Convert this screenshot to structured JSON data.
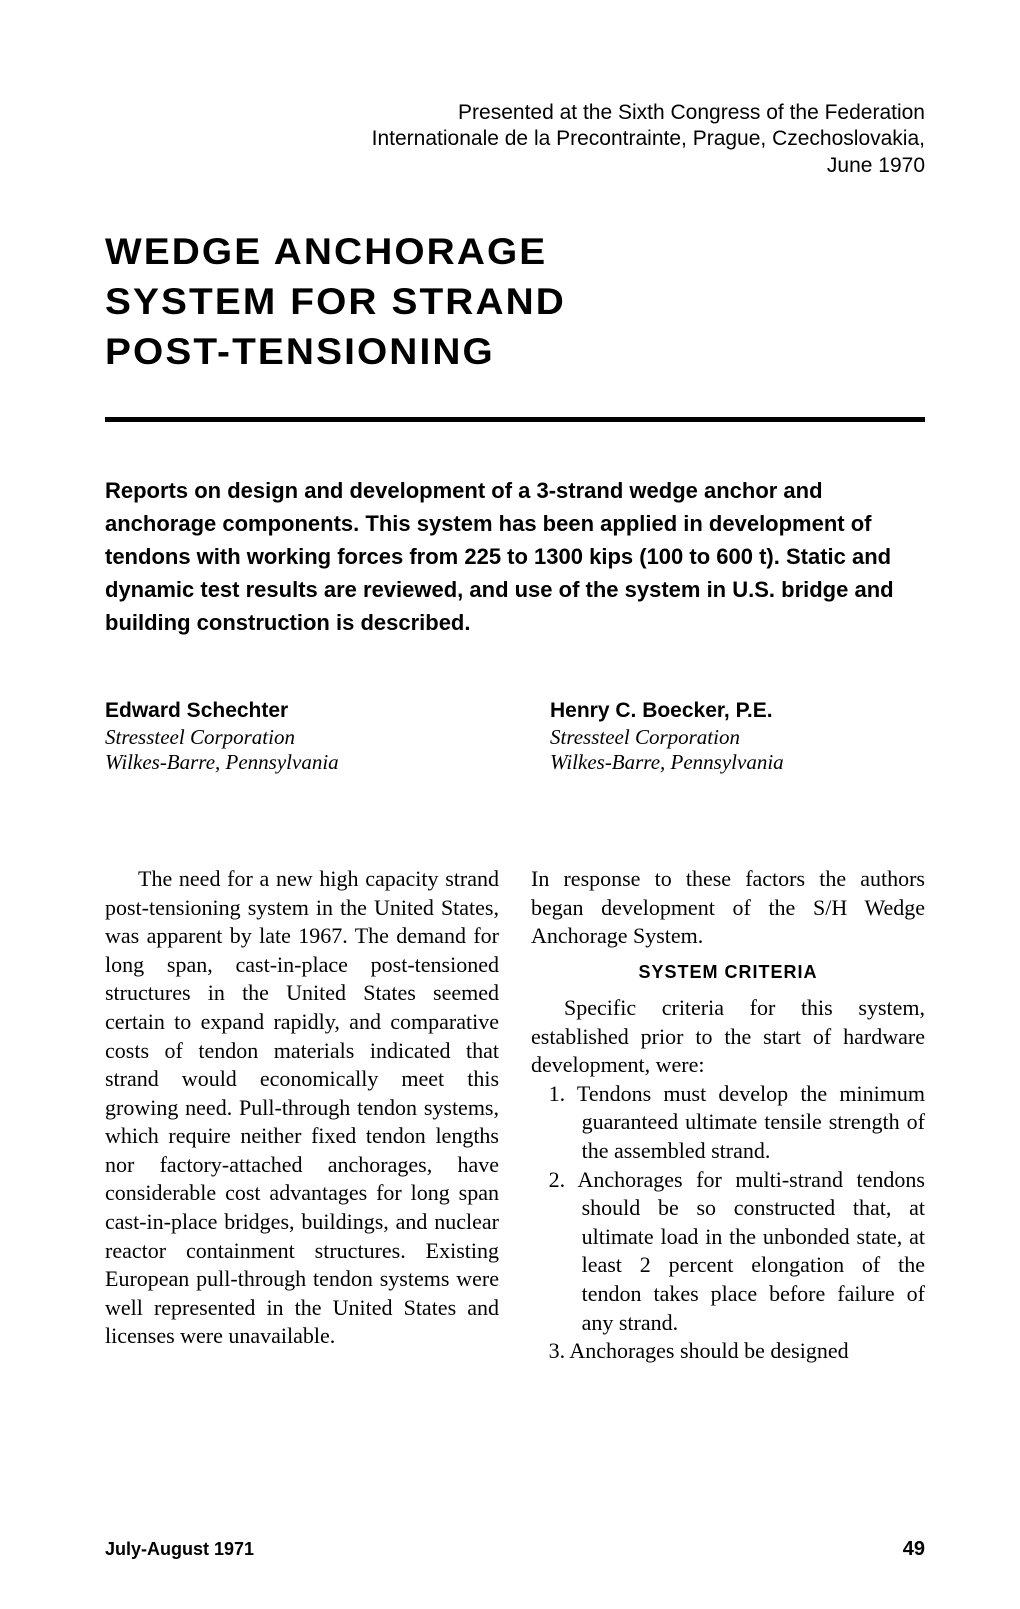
{
  "presented": {
    "line1": "Presented at the Sixth Congress of the Federation",
    "line2": "Internationale de la Precontrainte, Prague, Czechoslovakia,",
    "line3": "June 1970"
  },
  "title": {
    "line1": "WEDGE ANCHORAGE",
    "line2": "SYSTEM FOR STRAND",
    "line3": "POST-TENSIONING"
  },
  "abstract": "Reports on design and development of a 3-strand wedge anchor and anchorage components. This system has been applied in development of tendons with working forces from 225 to 1300 kips (100 to 600 t). Static and dynamic test results are reviewed, and use of the system in U.S. bridge and building construction is described.",
  "authors": [
    {
      "name": "Edward Schechter",
      "org": "Stressteel Corporation",
      "loc": "Wilkes-Barre, Pennsylvania"
    },
    {
      "name": "Henry C. Boecker, P.E.",
      "org": "Stressteel Corporation",
      "loc": "Wilkes-Barre, Pennsylvania"
    }
  ],
  "body": {
    "col1_p1": "The need for a new high capacity strand post-tensioning system in the United States, was apparent by late 1967. The demand for long span, cast-in-place post-tensioned structures in the United States seemed certain to expand rapidly, and comparative costs of tendon materials indicated that strand would economically meet this growing need. Pull-through tendon systems, which require neither fixed tendon lengths nor factory-attached anchorages, have considerable cost advantages for long span cast-in-place bridges, buildings, and nuclear reactor containment structures. Existing European pull-through tendon systems were well represented in the United States and licenses were unavailable.",
    "col2_p1": "In response to these factors the authors began development of the S/H Wedge Anchorage System.",
    "section_heading": "SYSTEM CRITERIA",
    "col2_p2": "Specific criteria for this system, established prior to the start of hardware development, were:",
    "criteria": [
      "1. Tendons must develop the minimum guaranteed ultimate tensile strength of the assembled strand.",
      "2. Anchorages for multi-strand tendons should be so constructed that, at ultimate load in the unbonded state, at least 2 percent elongation of the tendon takes place before failure of any strand.",
      "3. Anchorages should be designed"
    ]
  },
  "footer": {
    "issue": "July-August 1971",
    "page": "49"
  }
}
